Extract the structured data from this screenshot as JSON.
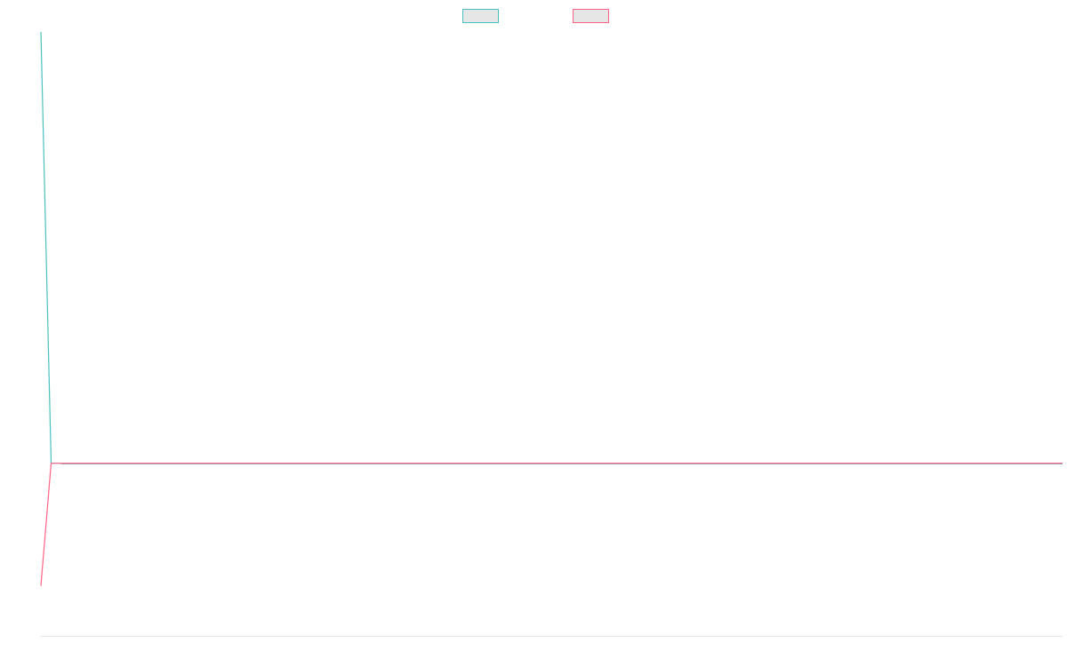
{
  "chart_data": {
    "type": "line",
    "title": "",
    "xlabel": "",
    "ylabel": "",
    "grid": false,
    "legend_position": "top",
    "x": [
      0,
      1,
      2,
      100
    ],
    "ylim": [
      -100,
      250
    ],
    "series": [
      {
        "name": "",
        "color": "#4bc0c0",
        "fill": "#e6e6e6",
        "values": [
          250,
          0,
          0,
          0
        ]
      },
      {
        "name": "",
        "color": "#ff6384",
        "fill": "#e6e6e6",
        "values": [
          -71,
          0,
          0,
          0
        ]
      }
    ],
    "axis_color": "#e5e5e5",
    "zero_line_color": "#5b8fa8"
  }
}
